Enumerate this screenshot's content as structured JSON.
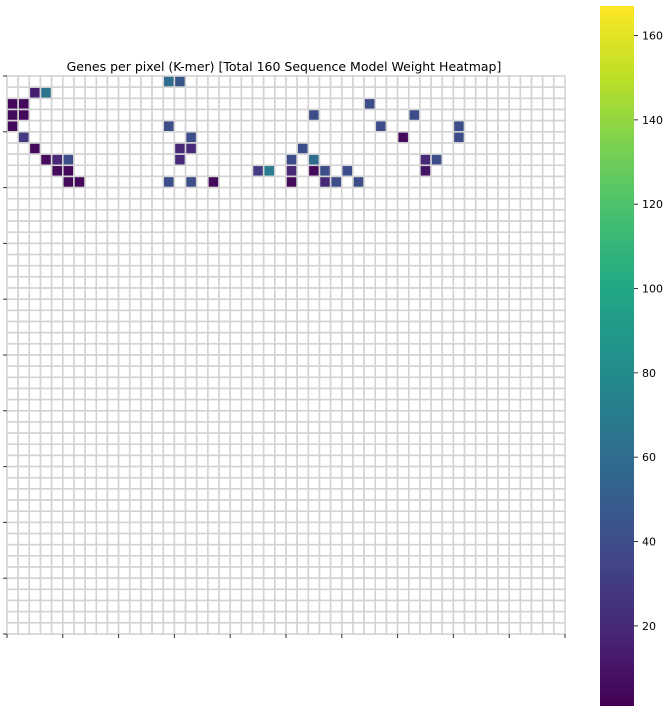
{
  "chart_data": {
    "type": "heatmap",
    "title": "Genes per pixel  (K-mer) [Total 160 Sequence Model Weight Heatmap]",
    "xlabel": "",
    "ylabel": "",
    "grid_size": [
      50,
      50
    ],
    "x_tick_labels": [
      "",
      "",
      "",
      "",
      "",
      "",
      "",
      "",
      "",
      "",
      ""
    ],
    "y_tick_labels": [
      "",
      "",
      "",
      "",
      "",
      "",
      "",
      "",
      "",
      "",
      ""
    ],
    "colorbar": {
      "colormap": "viridis",
      "range": [
        1,
        167
      ],
      "tick_values": [
        20,
        40,
        60,
        80,
        100,
        120,
        140,
        160
      ],
      "tick_labels": [
        "20",
        "40",
        "60",
        "80",
        "100",
        "120",
        "140",
        "160"
      ]
    },
    "cell_edge_color": "#d3d3d3",
    "empty_cell_color": "#ffffff",
    "cells": [
      [
        0,
        14,
        60
      ],
      [
        0,
        15,
        45
      ],
      [
        1,
        2,
        15
      ],
      [
        1,
        3,
        65
      ],
      [
        2,
        0,
        5
      ],
      [
        2,
        1,
        5
      ],
      [
        2,
        32,
        40
      ],
      [
        3,
        0,
        5
      ],
      [
        3,
        1,
        5
      ],
      [
        3,
        27,
        40
      ],
      [
        3,
        36,
        40
      ],
      [
        4,
        0,
        5
      ],
      [
        4,
        14,
        40
      ],
      [
        4,
        33,
        40
      ],
      [
        4,
        40,
        40
      ],
      [
        5,
        1,
        30
      ],
      [
        5,
        16,
        40
      ],
      [
        5,
        35,
        5
      ],
      [
        5,
        40,
        40
      ],
      [
        6,
        2,
        5
      ],
      [
        6,
        15,
        20
      ],
      [
        6,
        16,
        20
      ],
      [
        6,
        26,
        40
      ],
      [
        7,
        3,
        5
      ],
      [
        7,
        4,
        20
      ],
      [
        7,
        5,
        40
      ],
      [
        7,
        15,
        20
      ],
      [
        7,
        25,
        40
      ],
      [
        7,
        27,
        60
      ],
      [
        7,
        37,
        20
      ],
      [
        7,
        38,
        40
      ],
      [
        8,
        4,
        5
      ],
      [
        8,
        5,
        5
      ],
      [
        8,
        22,
        30
      ],
      [
        8,
        23,
        70
      ],
      [
        8,
        25,
        20
      ],
      [
        8,
        27,
        5
      ],
      [
        8,
        28,
        40
      ],
      [
        8,
        30,
        40
      ],
      [
        8,
        37,
        10
      ],
      [
        9,
        5,
        5
      ],
      [
        9,
        6,
        5
      ],
      [
        9,
        14,
        40
      ],
      [
        9,
        16,
        40
      ],
      [
        9,
        18,
        5
      ],
      [
        9,
        25,
        5
      ],
      [
        9,
        28,
        20
      ],
      [
        9,
        29,
        40
      ],
      [
        9,
        31,
        40
      ]
    ]
  }
}
